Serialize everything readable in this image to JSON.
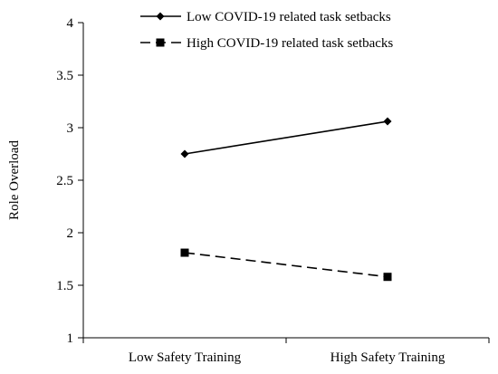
{
  "chart_data": {
    "type": "line",
    "categories": [
      "Low Safety Training",
      "High Safety Training"
    ],
    "series": [
      {
        "name": "Low COVID-19 related task setbacks",
        "values": [
          2.75,
          3.06
        ],
        "marker": "diamond",
        "line_style": "solid",
        "color": "#000000"
      },
      {
        "name": "High COVID-19 related task setbacks",
        "values": [
          1.81,
          1.58
        ],
        "marker": "square",
        "line_style": "dashed",
        "color": "#000000"
      }
    ],
    "xlabel": "",
    "ylabel": "Role Overload",
    "ylim": [
      1,
      4
    ],
    "yticks": [
      1,
      1.5,
      2,
      2.5,
      3,
      3.5,
      4
    ],
    "ytick_labels": [
      "1",
      "1.5",
      "2",
      "2.5",
      "3",
      "3.5",
      "4"
    ],
    "grid": false,
    "legend_position": "top"
  }
}
